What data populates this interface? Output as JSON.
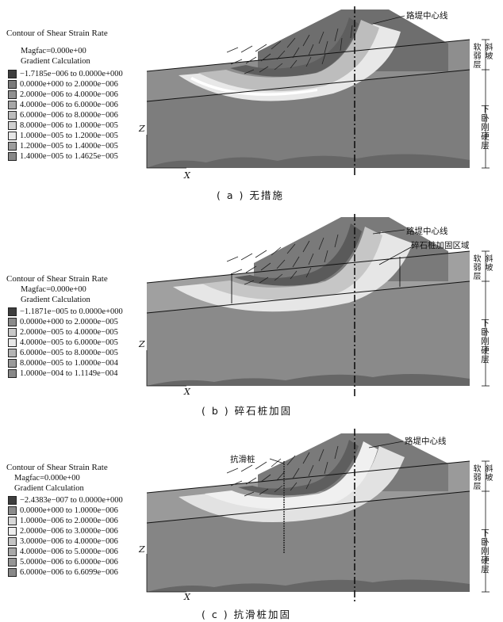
{
  "panels": [
    {
      "caption": "( a ) 无措施",
      "legend": {
        "title": "Contour of Shear Strain Rate",
        "magfac": "Magfac=0.000e+00",
        "gradient": "Gradient Calculation",
        "ranges": [
          "−1.7185e−006 to 0.0000e+000",
          "0.0000e+000 to 2.0000e−006",
          "2.0000e−006 to 4.0000e−006",
          "4.0000e−006 to 6.0000e−006",
          "6.0000e−006 to 8.0000e−006",
          "8.0000e−006 to 1.0000e−005",
          "1.0000e−005 to 1.2000e−005",
          "1.2000e−005 to 1.4000e−005",
          "1.4000e−005 to 1.4625e−005"
        ],
        "colors": [
          "#3e3e3e",
          "#7a7a7a",
          "#909090",
          "#a6a6a6",
          "#bcbcbc",
          "#d0d0d0",
          "#e6e6e6",
          "#9c9c9c",
          "#888888"
        ]
      },
      "annotations": [
        "路堤中心线"
      ],
      "layers": [
        "斜坡\n软弱层",
        "下卧刚硬层"
      ],
      "axes": {
        "z": "Z",
        "x": "X"
      }
    },
    {
      "caption": "( b ) 碎石桩加固",
      "legend": {
        "title": "Contour of Shear Strain Rate",
        "magfac": "Magfac=0.000e+00",
        "gradient": "Gradient Calculation",
        "ranges": [
          "−1.1871e−005 to 0.0000e+000",
          "0.0000e+000 to 2.0000e−005",
          "2.0000e−005 to 4.0000e−005",
          "4.0000e−005 to 6.0000e−005",
          "6.0000e−005 to 8.0000e−005",
          "8.0000e−005 to 1.0000e−004",
          "1.0000e−004 to 1.1149e−004"
        ],
        "colors": [
          "#3e3e3e",
          "#8a8a8a",
          "#c8c8c8",
          "#e8e8e8",
          "#b4b4b4",
          "#9a9a9a",
          "#888888"
        ]
      },
      "annotations": [
        "路堤中心线",
        "碎石桩加固区域"
      ],
      "layers": [
        "斜坡\n软弱层",
        "下卧刚硬层"
      ],
      "axes": {
        "z": "Z",
        "x": "X"
      }
    },
    {
      "caption": "( c ) 抗滑桩加固",
      "legend": {
        "title": "Contour of Shear Strain Rate",
        "magfac": "Magfac=0.000e+00",
        "gradient": "Gradient Calculation",
        "ranges": [
          "−2.4383e−007 to 0.0000e+000",
          "0.0000e+000 to 1.0000e−006",
          "1.0000e−006 to 2.0000e−006",
          "2.0000e−006 to 3.0000e−006",
          "3.0000e−006 to 4.0000e−006",
          "4.0000e−006 to 5.0000e−006",
          "5.0000e−006 to 6.0000e−006",
          "6.0000e−006 to 6.6099e−006"
        ],
        "colors": [
          "#3e3e3e",
          "#8a8a8a",
          "#d8d8d8",
          "#eeeeee",
          "#c4c4c4",
          "#a8a8a8",
          "#959595",
          "#888888"
        ]
      },
      "annotations": [
        "路堤中心线",
        "抗滑桩"
      ],
      "layers": [
        "斜坡\n软弱层",
        "下卧刚硬层"
      ],
      "axes": {
        "z": "Z",
        "x": "X"
      }
    }
  ]
}
